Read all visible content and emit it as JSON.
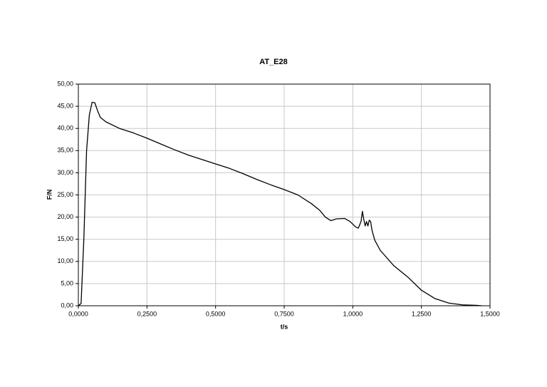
{
  "chart_data": {
    "type": "line",
    "title": "AT_E28",
    "x_label": "t/s",
    "y_label": "F/N",
    "x": [
      0,
      0.01,
      0.02,
      0.03,
      0.04,
      0.05,
      0.06,
      0.07,
      0.08,
      0.1,
      0.15,
      0.2,
      0.25,
      0.3,
      0.35,
      0.4,
      0.45,
      0.5,
      0.55,
      0.6,
      0.65,
      0.7,
      0.75,
      0.8,
      0.85,
      0.88,
      0.9,
      0.92,
      0.94,
      0.97,
      0.99,
      1.01,
      1.02,
      1.03,
      1.035,
      1.04,
      1.045,
      1.05,
      1.055,
      1.06,
      1.065,
      1.07,
      1.08,
      1.1,
      1.15,
      1.2,
      1.25,
      1.3,
      1.35,
      1.4,
      1.45,
      1.47
    ],
    "series": [
      {
        "name": "F",
        "color": "#000000",
        "values": [
          0,
          0.5,
          15,
          35,
          43,
          45.9,
          45.8,
          44,
          42.5,
          41.5,
          40,
          39,
          37.8,
          36.5,
          35.2,
          34,
          33,
          32,
          31,
          29.8,
          28.5,
          27.3,
          26.2,
          25,
          23,
          21.5,
          20,
          19.2,
          19.6,
          19.7,
          19,
          17.8,
          17.5,
          19,
          21.3,
          19.5,
          18,
          19,
          18,
          19.3,
          19,
          17,
          14.8,
          12.5,
          9,
          6.5,
          3.5,
          1.6,
          0.6,
          0.2,
          0.1,
          0
        ]
      }
    ],
    "xlim": [
      0,
      1.5
    ],
    "ylim": [
      0,
      50
    ],
    "xticks": [
      {
        "value": 0,
        "label": "0,0000"
      },
      {
        "value": 0.25,
        "label": "0,2500"
      },
      {
        "value": 0.5,
        "label": "0,5000"
      },
      {
        "value": 0.75,
        "label": "0,7500"
      },
      {
        "value": 1,
        "label": "1,0000"
      },
      {
        "value": 1.25,
        "label": "1,2500"
      },
      {
        "value": 1.5,
        "label": "1,5000"
      }
    ],
    "yticks": [
      {
        "value": 0,
        "label": "0,00"
      },
      {
        "value": 5,
        "label": "5,00"
      },
      {
        "value": 10,
        "label": "10,00"
      },
      {
        "value": 15,
        "label": "15,00"
      },
      {
        "value": 20,
        "label": "20,00"
      },
      {
        "value": 25,
        "label": "25,00"
      },
      {
        "value": 30,
        "label": "30,00"
      },
      {
        "value": 35,
        "label": "35,00"
      },
      {
        "value": 40,
        "label": "40,00"
      },
      {
        "value": 45,
        "label": "45,00"
      },
      {
        "value": 50,
        "label": "50,00"
      }
    ],
    "grid": true
  }
}
